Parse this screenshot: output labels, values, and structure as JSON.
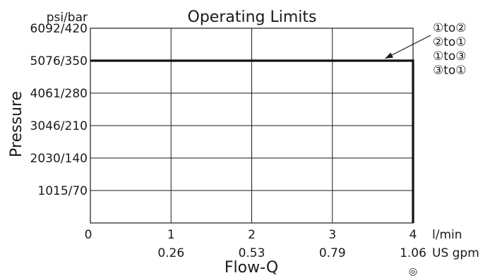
{
  "chart_data": {
    "type": "line",
    "title": "Operating Limits",
    "ylabel": "Pressure",
    "xlabel": "Flow-Q",
    "y_unit_label": "psi/bar",
    "x_unit_label": "l/min",
    "x_secondary_unit_label": "US gpm",
    "ylim": [
      0,
      420
    ],
    "xlim": [
      0,
      4
    ],
    "y_ticks": [
      {
        "value": 70,
        "label": "1015/70"
      },
      {
        "value": 140,
        "label": "2030/140"
      },
      {
        "value": 210,
        "label": "3046/210"
      },
      {
        "value": 280,
        "label": "4061/280"
      },
      {
        "value": 350,
        "label": "5076/350"
      },
      {
        "value": 420,
        "label": "6092/420"
      }
    ],
    "x_ticks": [
      {
        "value": 0,
        "label": "0",
        "secondary": ""
      },
      {
        "value": 1,
        "label": "1",
        "secondary": "0.26"
      },
      {
        "value": 2,
        "label": "2",
        "secondary": "0.53"
      },
      {
        "value": 3,
        "label": "3",
        "secondary": "0.79"
      },
      {
        "value": 4,
        "label": "4",
        "secondary": "1.06"
      }
    ],
    "series": [
      {
        "x": [
          0,
          4,
          4
        ],
        "y": [
          350,
          350,
          0
        ]
      }
    ],
    "annotation": {
      "lines": [
        "①to②",
        "②to①",
        "①to③",
        "③to①"
      ],
      "x": 3.6,
      "y": 350
    },
    "grid": true,
    "line_color": "#111111",
    "grid_color": "#1a1a1a"
  },
  "footer_symbol": "◎"
}
